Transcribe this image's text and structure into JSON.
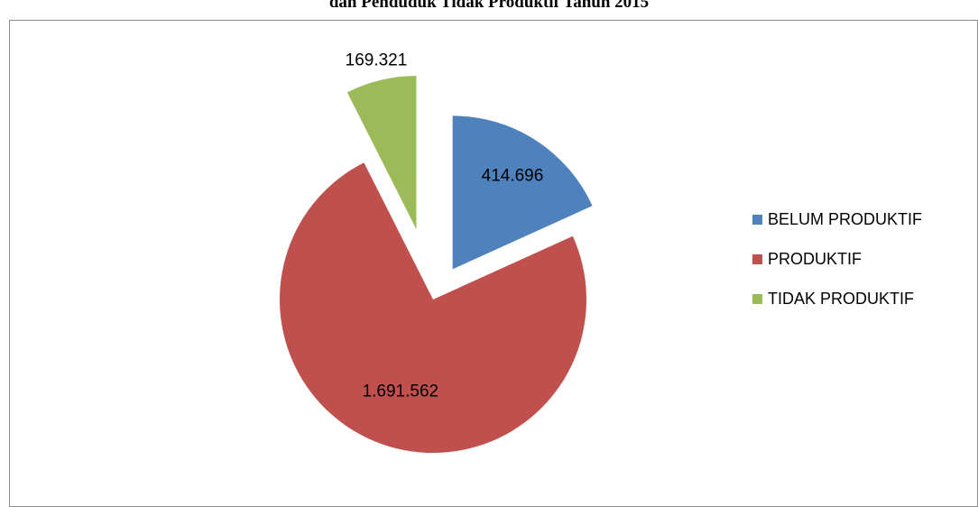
{
  "chart_data": {
    "type": "pie",
    "title": "dan Penduduk Tidak Produktif Tahun 2015",
    "categories": [
      "BELUM PRODUKTIF",
      "PRODUKTIF",
      "TIDAK PRODUKTIF"
    ],
    "values": [
      414696,
      1691562,
      169321
    ],
    "value_labels": [
      "414.696",
      "1.691.562",
      "169.321"
    ],
    "colors": [
      "#4f81bd",
      "#c0504d",
      "#9bbb59"
    ],
    "exploded": true,
    "legend_position": "right"
  }
}
